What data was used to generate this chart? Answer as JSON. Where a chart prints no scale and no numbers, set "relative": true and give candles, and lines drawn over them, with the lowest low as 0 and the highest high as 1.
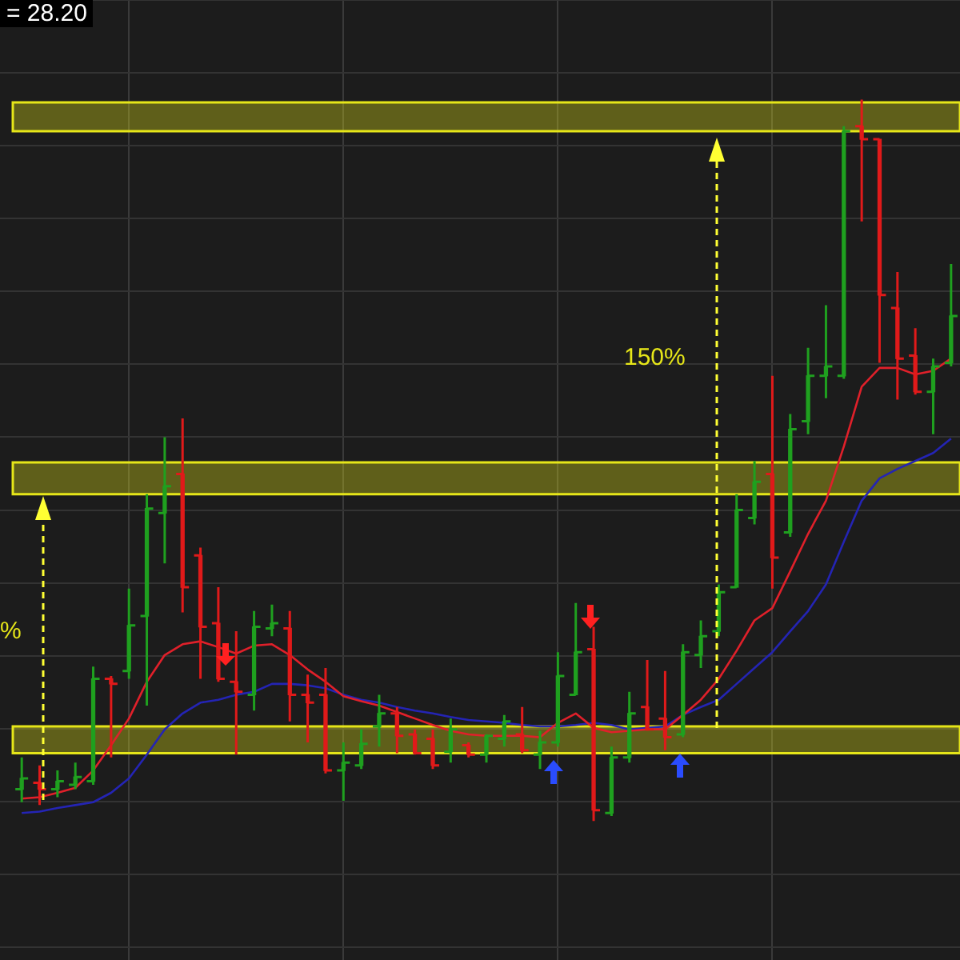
{
  "chart_data": {
    "type": "candlestick",
    "relative": true,
    "grid": true,
    "marker": "none",
    "categories": [
      null,
      null,
      null,
      null,
      null,
      null,
      null,
      null,
      null,
      null,
      null,
      null,
      null,
      null,
      null,
      null,
      null,
      null,
      null,
      null,
      null,
      null,
      null,
      null,
      null,
      null,
      null,
      null,
      null,
      null,
      null,
      null,
      null,
      null,
      null,
      null,
      null,
      null,
      null,
      null,
      null,
      null,
      null,
      null,
      null,
      null,
      null,
      null,
      null,
      null,
      null,
      null,
      null
    ],
    "ohlc": [
      [
        0.044,
        0.088,
        0.026,
        0.059
      ],
      [
        0.053,
        0.077,
        0.022,
        0.044
      ],
      [
        0.044,
        0.07,
        0.033,
        0.055
      ],
      [
        0.05,
        0.081,
        0.044,
        0.061
      ],
      [
        0.055,
        0.214,
        0.05,
        0.197
      ],
      [
        0.197,
        0.201,
        0.088,
        0.19
      ],
      [
        0.208,
        0.322,
        0.197,
        0.271
      ],
      [
        0.284,
        0.453,
        0.16,
        0.433
      ],
      [
        0.427,
        0.532,
        0.357,
        0.464
      ],
      [
        0.481,
        0.558,
        0.289,
        0.324
      ],
      [
        0.368,
        0.379,
        0.197,
        0.269
      ],
      [
        0.274,
        0.324,
        0.193,
        0.197
      ],
      [
        0.193,
        0.263,
        0.092,
        0.179
      ],
      [
        0.175,
        0.291,
        0.153,
        0.269
      ],
      [
        0.267,
        0.3,
        0.256,
        0.274
      ],
      [
        0.267,
        0.291,
        0.138,
        0.175
      ],
      [
        0.175,
        0.203,
        0.109,
        0.164
      ],
      [
        0.175,
        0.212,
        0.066,
        0.07
      ],
      [
        0.07,
        0.109,
        0.028,
        0.081
      ],
      [
        0.077,
        0.127,
        0.072,
        0.107
      ],
      [
        0.131,
        0.175,
        0.103,
        0.149
      ],
      [
        0.149,
        0.158,
        0.094,
        0.118
      ],
      [
        0.12,
        0.127,
        0.092,
        0.094
      ],
      [
        0.114,
        0.127,
        0.072,
        0.077
      ],
      [
        0.096,
        0.142,
        0.081,
        0.127
      ],
      [
        0.105,
        0.109,
        0.088,
        0.092
      ],
      [
        0.092,
        0.12,
        0.081,
        0.118
      ],
      [
        0.114,
        0.147,
        0.103,
        0.138
      ],
      [
        0.12,
        0.158,
        0.094,
        0.098
      ],
      [
        0.092,
        0.125,
        0.072,
        0.109
      ],
      [
        0.109,
        0.234,
        0.103,
        0.201
      ],
      [
        0.175,
        0.302,
        0.175,
        0.234
      ],
      [
        0.238,
        0.269,
        0,
        0.015
      ],
      [
        0.011,
        0.103,
        0.007,
        0.088
      ],
      [
        0.088,
        0.179,
        0.081,
        0.149
      ],
      [
        0.158,
        0.223,
        0.125,
        0.127
      ],
      [
        0.142,
        0.208,
        0.098,
        0.116
      ],
      [
        0.12,
        0.245,
        0.116,
        0.234
      ],
      [
        0.23,
        0.278,
        0.212,
        0.256
      ],
      [
        0.263,
        0.328,
        0.256,
        0.317
      ],
      [
        0.324,
        0.453,
        0.324,
        0.431
      ],
      [
        0.42,
        0.499,
        0.411,
        0.47
      ],
      [
        0.481,
        0.617,
        0.322,
        0.365
      ],
      [
        0.4,
        0.564,
        0.394,
        0.543
      ],
      [
        0.554,
        0.656,
        0.536,
        0.617
      ],
      [
        0.617,
        0.715,
        0.586,
        0.63
      ],
      [
        0.617,
        0.963,
        0.613,
        0.956
      ],
      [
        0.963,
        1,
        0.831,
        0.945
      ],
      [
        0.945,
        0.945,
        0.635,
        0.729
      ],
      [
        0.711,
        0.761,
        0.584,
        0.641
      ],
      [
        0.645,
        0.683,
        0.591,
        0.595
      ],
      [
        0.595,
        0.641,
        0.536,
        0.63
      ],
      [
        0.635,
        0.772,
        0.63,
        0.7
      ]
    ],
    "series": [
      {
        "type": "line",
        "color": "#e0202a",
        "values": [
          0.031,
          0.033,
          0.039,
          0.046,
          0.07,
          0.105,
          0.142,
          0.193,
          0.23,
          0.245,
          0.249,
          0.241,
          0.232,
          0.243,
          0.245,
          0.23,
          0.21,
          0.193,
          0.173,
          0.166,
          0.16,
          0.151,
          0.142,
          0.133,
          0.125,
          0.12,
          0.118,
          0.118,
          0.118,
          0.116,
          0.136,
          0.149,
          0.129,
          0.123,
          0.125,
          0.127,
          0.127,
          0.147,
          0.168,
          0.197,
          0.236,
          0.278,
          0.295,
          0.346,
          0.398,
          0.444,
          0.519,
          0.602,
          0.628,
          0.628,
          0.619,
          0.624,
          0.641
        ]
      },
      {
        "type": "line",
        "color": "#2424b4",
        "values": [
          0.011,
          0.013,
          0.018,
          0.022,
          0.026,
          0.039,
          0.059,
          0.092,
          0.127,
          0.149,
          0.164,
          0.168,
          0.175,
          0.179,
          0.19,
          0.19,
          0.188,
          0.184,
          0.175,
          0.168,
          0.164,
          0.158,
          0.153,
          0.149,
          0.144,
          0.14,
          0.138,
          0.136,
          0.133,
          0.131,
          0.131,
          0.133,
          0.136,
          0.133,
          0.127,
          0.129,
          0.131,
          0.147,
          0.158,
          0.168,
          0.19,
          0.212,
          0.234,
          0.263,
          0.291,
          0.328,
          0.387,
          0.444,
          0.475,
          0.488,
          0.499,
          0.51,
          0.53
        ]
      }
    ],
    "bands": [
      {
        "axis": "y",
        "from": 0.956,
        "to": 0.996,
        "color": "#e6e619"
      },
      {
        "axis": "y",
        "from": 0.453,
        "to": 0.497,
        "color": "#e6e619"
      },
      {
        "axis": "y",
        "from": 0.094,
        "to": 0.131,
        "color": "#e6e619"
      }
    ],
    "annotations": [
      "= 28.20",
      "%",
      "150%"
    ]
  }
}
